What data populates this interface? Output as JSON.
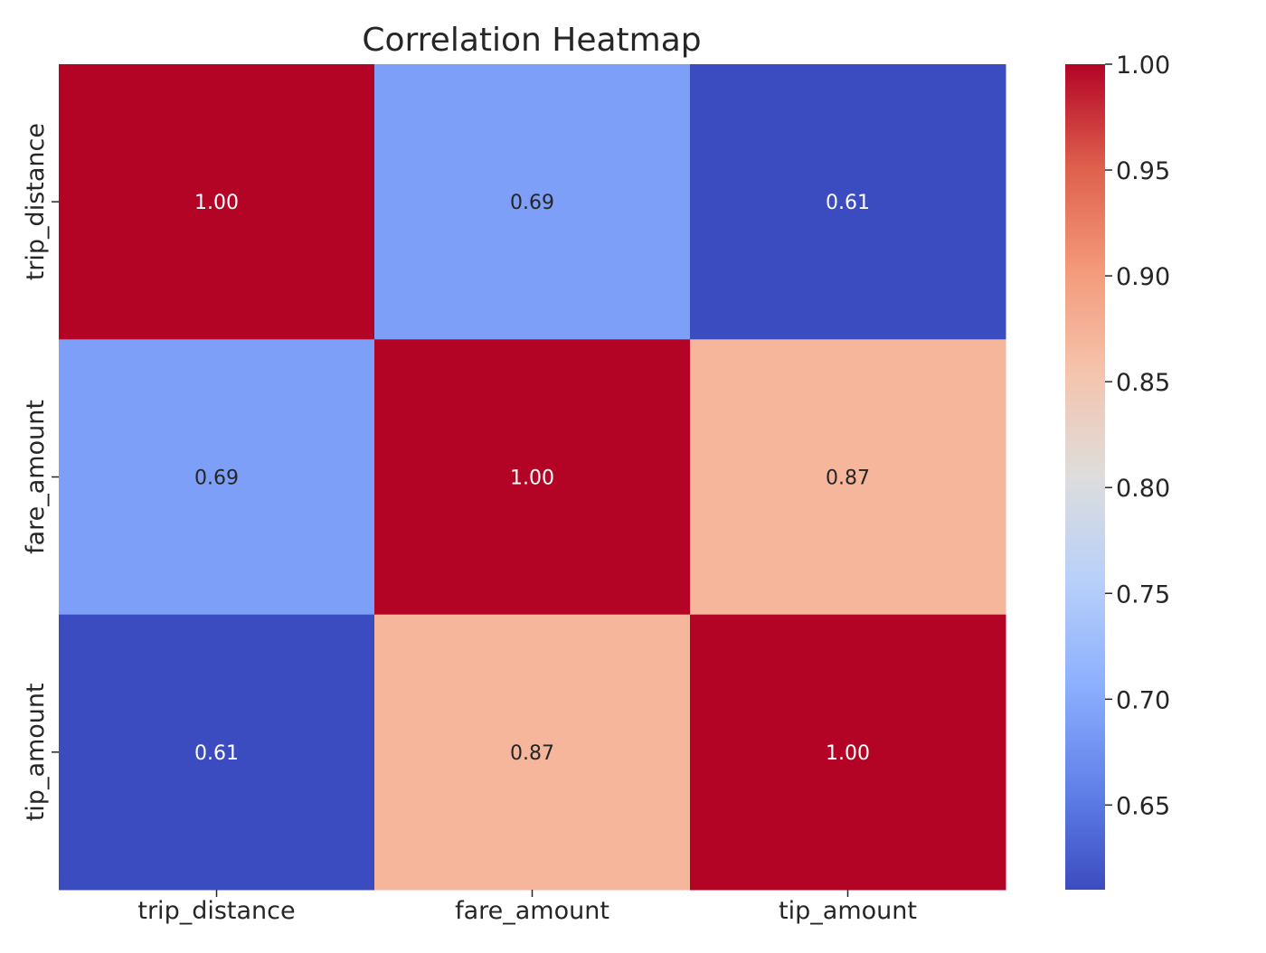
{
  "chart_data": {
    "type": "heatmap",
    "title": "Correlation Heatmap",
    "x_labels": [
      "trip_distance",
      "fare_amount",
      "tip_amount"
    ],
    "y_labels": [
      "trip_distance",
      "fare_amount",
      "tip_amount"
    ],
    "values": [
      [
        1.0,
        0.69,
        0.61
      ],
      [
        0.69,
        1.0,
        0.87
      ],
      [
        0.61,
        0.87,
        1.0
      ]
    ],
    "annotation_format": "2 decimals",
    "colormap": "coolwarm",
    "colorbar": {
      "vmin": 0.61,
      "vmax": 1.0,
      "ticks": [
        0.65,
        0.7,
        0.75,
        0.8,
        0.85,
        0.9,
        0.95,
        1.0
      ],
      "tick_labels": [
        "0.65",
        "0.70",
        "0.75",
        "0.80",
        "0.85",
        "0.90",
        "0.95",
        "1.00"
      ]
    },
    "grid": false
  },
  "colors": {
    "text_dark": "#262626",
    "annotation_light": "#ffffff",
    "annotation_dark": "#262626"
  }
}
